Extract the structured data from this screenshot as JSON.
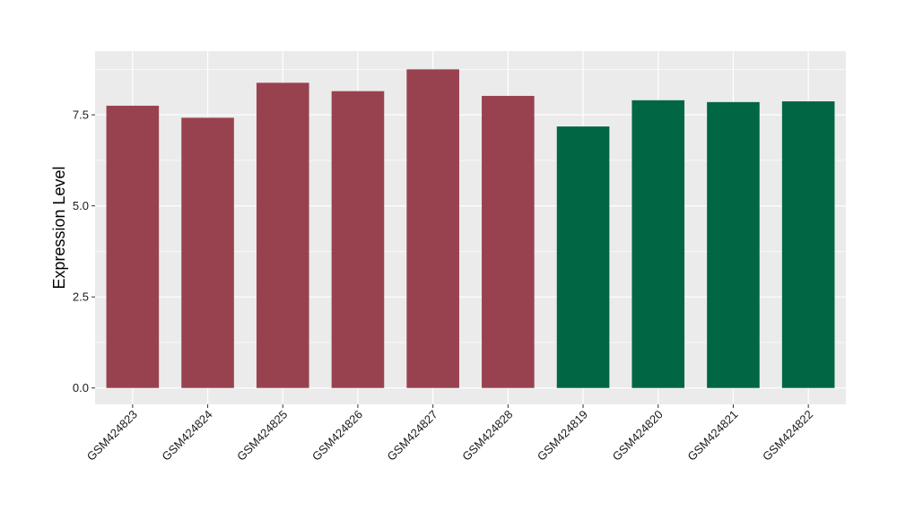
{
  "chart_data": {
    "type": "bar",
    "title": "",
    "xlabel": "",
    "ylabel": "Expression Level",
    "categories": [
      "GSM424823",
      "GSM424824",
      "GSM424825",
      "GSM424826",
      "GSM424827",
      "GSM424828",
      "GSM424819",
      "GSM424820",
      "GSM424821",
      "GSM424822"
    ],
    "values": [
      7.75,
      7.42,
      8.38,
      8.15,
      8.75,
      8.02,
      7.18,
      7.9,
      7.85,
      7.87
    ],
    "bar_colors": [
      "#99424F",
      "#99424F",
      "#99424F",
      "#99424F",
      "#99424F",
      "#99424F",
      "#006644",
      "#006644",
      "#006644",
      "#006644"
    ],
    "ylim": [
      -0.45,
      9.25
    ],
    "yticks": [
      0.0,
      2.5,
      5.0,
      7.5
    ],
    "ytick_labels": [
      "0.0",
      "2.5",
      "5.0",
      "7.5"
    ],
    "grid": true,
    "legend": "none",
    "panel_background": "#EBEBEB",
    "grid_color": "#FFFFFF"
  }
}
